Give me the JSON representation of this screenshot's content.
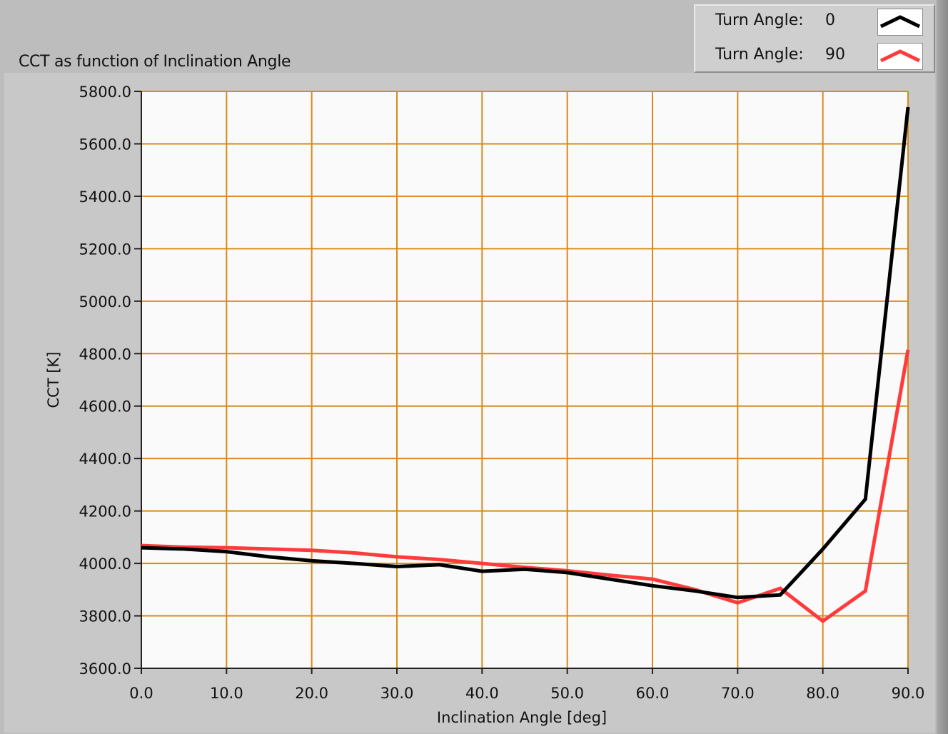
{
  "panel": {
    "title": "CCT as function of Inclination Angle"
  },
  "legend": {
    "items": [
      {
        "label": "Turn Angle:",
        "value": "0",
        "color": "#000000"
      },
      {
        "label": "Turn Angle:",
        "value": "90",
        "color": "#ff3b3b"
      }
    ]
  },
  "colors": {
    "plot_background": "#fafafa",
    "grid": "#d88a1c",
    "frame": "#bdbdbd"
  },
  "chart_data": {
    "type": "line",
    "title": "CCT as function of Inclination Angle",
    "xlabel": "Inclination Angle [deg]",
    "ylabel": "CCT [K]",
    "xlim": [
      0,
      90
    ],
    "ylim": [
      3600,
      5800
    ],
    "xticks": [
      0,
      10,
      20,
      30,
      40,
      50,
      60,
      70,
      80,
      90
    ],
    "yticks": [
      3600,
      3800,
      4000,
      4200,
      4400,
      4600,
      4800,
      5000,
      5200,
      5400,
      5600,
      5800
    ],
    "xtick_labels": [
      "0.0",
      "10.0",
      "20.0",
      "30.0",
      "40.0",
      "50.0",
      "60.0",
      "70.0",
      "80.0",
      "90.0"
    ],
    "ytick_labels": [
      "3600.0",
      "3800.0",
      "4000.0",
      "4200.0",
      "4400.0",
      "4600.0",
      "4800.0",
      "5000.0",
      "5200.0",
      "5400.0",
      "5600.0",
      "5800.0"
    ],
    "grid": true,
    "legend_position": "top-right",
    "series": [
      {
        "name": "Turn Angle: 0",
        "color": "#000000",
        "x": [
          0,
          5,
          10,
          15,
          20,
          25,
          30,
          35,
          40,
          45,
          50,
          55,
          60,
          65,
          70,
          75,
          80,
          85,
          90
        ],
        "y": [
          4060,
          4055,
          4045,
          4025,
          4010,
          4000,
          3988,
          3995,
          3970,
          3978,
          3965,
          3940,
          3915,
          3895,
          3870,
          3880,
          4055,
          4245,
          5740
        ]
      },
      {
        "name": "Turn Angle: 90",
        "color": "#ff3b3b",
        "x": [
          0,
          5,
          10,
          15,
          20,
          25,
          30,
          35,
          40,
          45,
          50,
          55,
          60,
          65,
          70,
          75,
          80,
          85,
          90
        ],
        "y": [
          4068,
          4062,
          4060,
          4055,
          4050,
          4040,
          4025,
          4015,
          4000,
          3985,
          3972,
          3955,
          3940,
          3900,
          3850,
          3905,
          3780,
          3895,
          4815
        ]
      }
    ]
  }
}
